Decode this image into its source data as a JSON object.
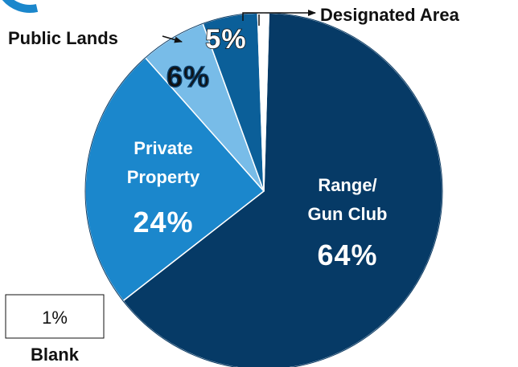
{
  "chart_data": {
    "type": "pie",
    "slices": [
      {
        "label": "Range/\nGun Club",
        "line1": "Range/",
        "line2": "Gun Club",
        "value": 64,
        "pct_label": "64%",
        "color": "#063a66"
      },
      {
        "label": "Private\nProperty",
        "line1": "Private",
        "line2": "Property",
        "value": 24,
        "pct_label": "24%",
        "color": "#1b87cc"
      },
      {
        "label": "Public Lands",
        "value": 6,
        "pct_label": "6%",
        "color": "#78bce8"
      },
      {
        "label": "Designated Area",
        "value": 5,
        "pct_label": "5%",
        "color": "#0b5f99"
      },
      {
        "label": "Blank",
        "value": 1,
        "pct_label": "1%",
        "color": "#ffffff"
      }
    ]
  },
  "colors": {
    "accent_arc": "#1b87cc",
    "outline": "#0a3a63"
  }
}
